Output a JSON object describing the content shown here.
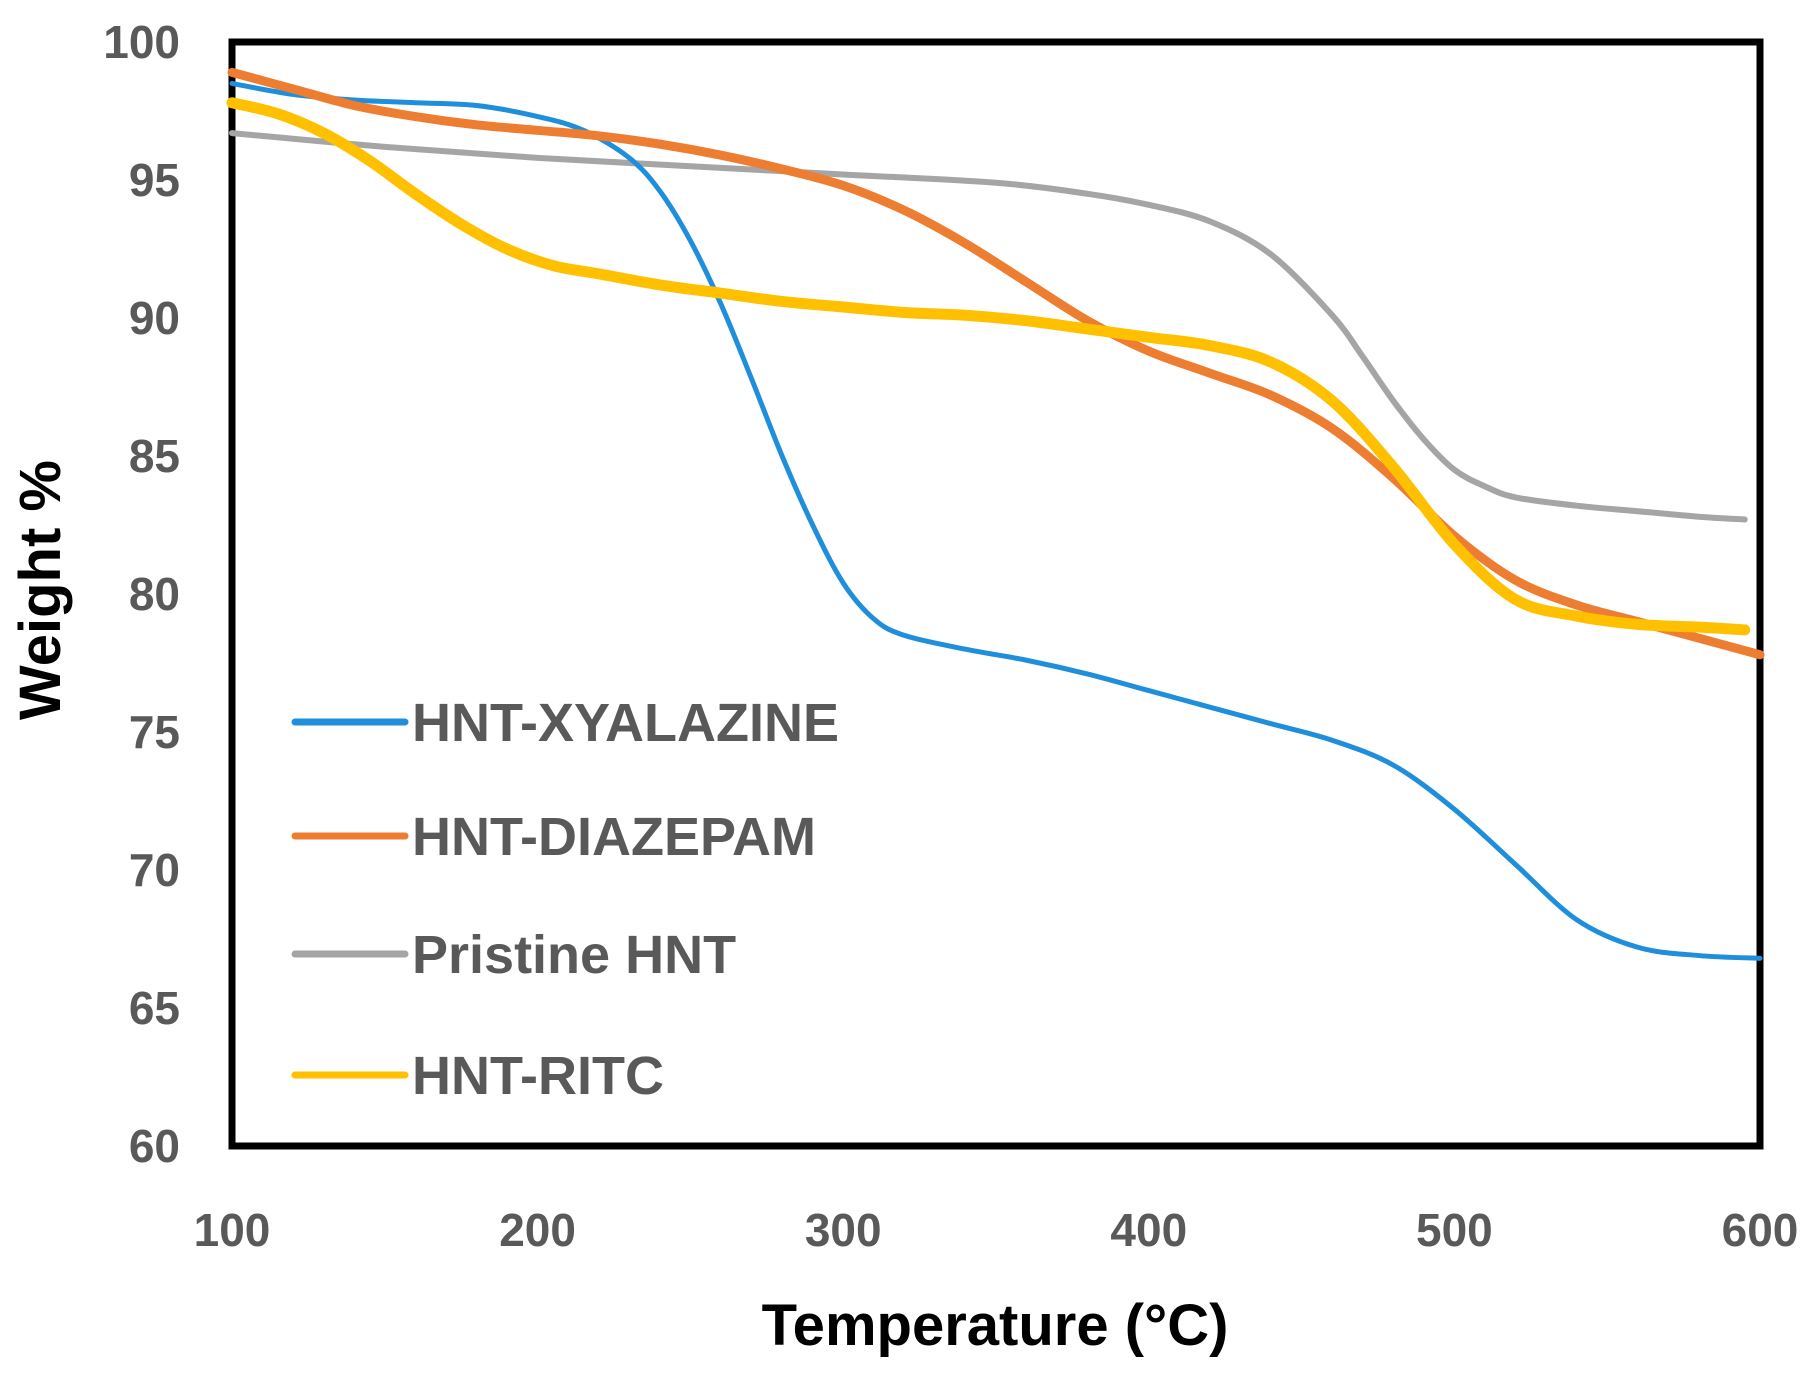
{
  "chart_data": {
    "type": "line",
    "title": "",
    "xlabel": "Temperature (°C)",
    "ylabel": "Weight %",
    "xlim": [
      100,
      600
    ],
    "ylim": [
      60,
      100
    ],
    "xticks": [
      100,
      200,
      300,
      400,
      500,
      600
    ],
    "yticks": [
      60,
      65,
      70,
      75,
      80,
      85,
      90,
      95,
      100
    ],
    "grid": false,
    "legend_position": "bottom-left",
    "series": [
      {
        "name": "HNT-XYALAZINE",
        "color": "#1f8fdb",
        "x": [
          100,
          120,
          140,
          160,
          180,
          200,
          215,
          230,
          240,
          250,
          260,
          270,
          280,
          290,
          300,
          310,
          320,
          340,
          360,
          380,
          400,
          420,
          440,
          460,
          480,
          500,
          520,
          540,
          560,
          580,
          600
        ],
        "y": [
          98.5,
          98.1,
          97.9,
          97.8,
          97.7,
          97.3,
          96.8,
          95.8,
          94.6,
          92.8,
          90.5,
          87.8,
          85.0,
          82.5,
          80.4,
          79.1,
          78.5,
          78.0,
          77.6,
          77.1,
          76.5,
          75.9,
          75.3,
          74.7,
          73.8,
          72.2,
          70.2,
          68.2,
          67.2,
          66.9,
          66.8
        ]
      },
      {
        "name": "HNT-DIAZEPAM",
        "color": "#ed7d31",
        "x": [
          100,
          120,
          140,
          160,
          180,
          200,
          220,
          240,
          260,
          280,
          300,
          320,
          340,
          360,
          380,
          400,
          420,
          440,
          460,
          480,
          500,
          520,
          540,
          560,
          580,
          600
        ],
        "y": [
          98.9,
          98.3,
          97.7,
          97.3,
          97.0,
          96.8,
          96.6,
          96.3,
          95.9,
          95.4,
          94.8,
          93.9,
          92.7,
          91.3,
          89.9,
          88.8,
          88.0,
          87.2,
          86.0,
          84.2,
          82.1,
          80.5,
          79.6,
          79.0,
          78.4,
          77.8
        ]
      },
      {
        "name": "Pristine HNT",
        "color": "#a5a5a5",
        "x": [
          100,
          150,
          200,
          250,
          300,
          350,
          380,
          400,
          420,
          440,
          460,
          470,
          480,
          490,
          500,
          510,
          520,
          540,
          560,
          580,
          595
        ],
        "y": [
          96.7,
          96.2,
          95.8,
          95.5,
          95.2,
          94.9,
          94.5,
          94.1,
          93.5,
          92.3,
          90.1,
          88.6,
          87.0,
          85.6,
          84.5,
          83.9,
          83.5,
          83.2,
          83.0,
          82.8,
          82.7
        ]
      },
      {
        "name": "HNT-RITC",
        "color": "#ffc000",
        "x": [
          100,
          115,
          130,
          145,
          160,
          175,
          190,
          205,
          220,
          240,
          260,
          280,
          300,
          320,
          340,
          360,
          380,
          400,
          420,
          440,
          460,
          480,
          500,
          520,
          540,
          560,
          580,
          595
        ],
        "y": [
          97.8,
          97.4,
          96.7,
          95.7,
          94.5,
          93.4,
          92.5,
          91.9,
          91.6,
          91.2,
          90.9,
          90.6,
          90.4,
          90.2,
          90.1,
          89.9,
          89.6,
          89.3,
          89.0,
          88.4,
          87.0,
          84.6,
          81.8,
          79.8,
          79.2,
          78.9,
          78.8,
          78.7
        ]
      }
    ]
  }
}
